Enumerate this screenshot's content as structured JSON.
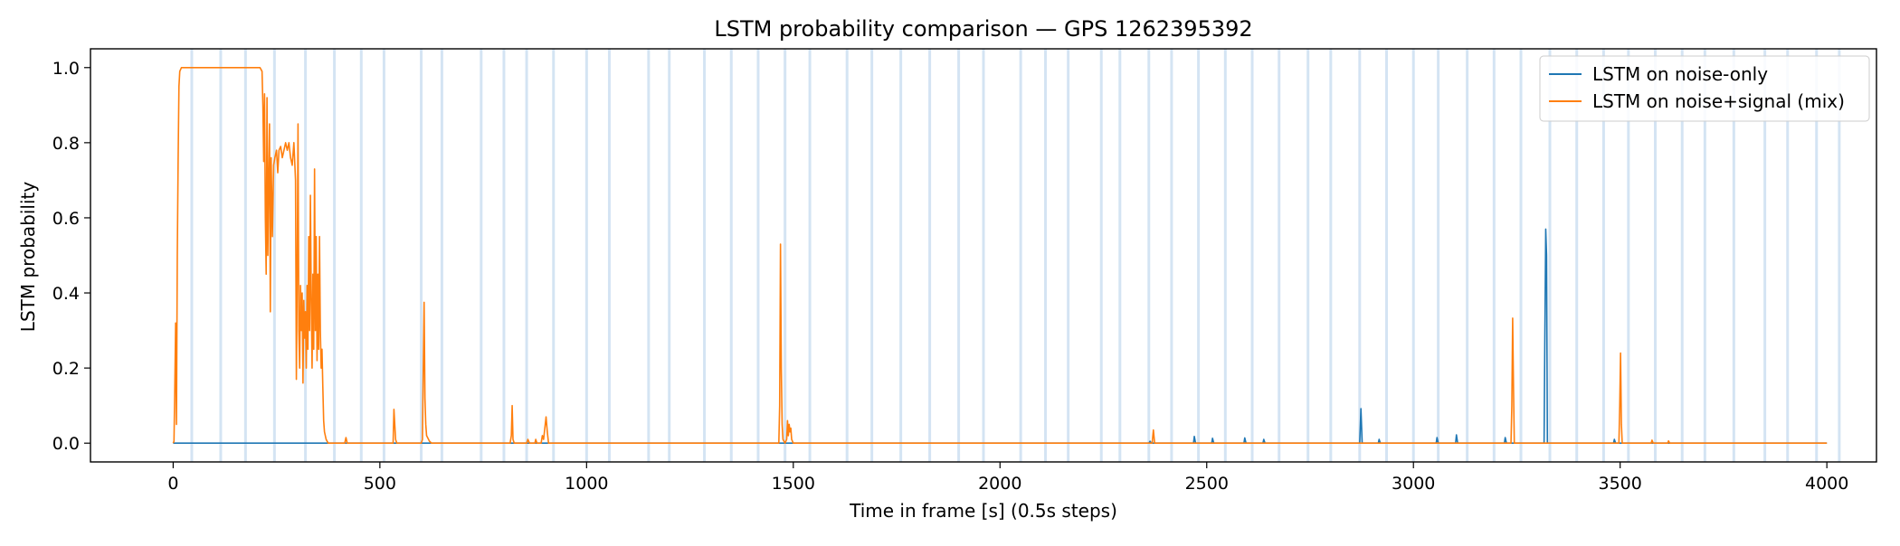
{
  "chart_data": {
    "type": "line",
    "title": "LSTM probability comparison — GPS 1262395392",
    "xlabel": "Time in frame [s] (0.5s steps)",
    "ylabel": "LSTM probability",
    "xlim": [
      -200,
      4120
    ],
    "ylim": [
      -0.05,
      1.05
    ],
    "xticks": [
      0,
      500,
      1000,
      1500,
      2000,
      2500,
      3000,
      3500,
      4000
    ],
    "yticks": [
      0.0,
      0.2,
      0.4,
      0.6,
      0.8,
      1.0
    ],
    "xtick_labels": [
      "0",
      "500",
      "1000",
      "1500",
      "2000",
      "2500",
      "3000",
      "3500",
      "4000"
    ],
    "ytick_labels": [
      "0.0",
      "0.2",
      "0.4",
      "0.6",
      "0.8",
      "1.0"
    ],
    "grid": false,
    "legend_position": "top-right",
    "background_bands": {
      "color": "#c6dbef",
      "x": [
        45,
        115,
        175,
        245,
        320,
        390,
        455,
        510,
        600,
        650,
        745,
        800,
        855,
        920,
        1000,
        1055,
        1150,
        1200,
        1285,
        1350,
        1415,
        1480,
        1540,
        1630,
        1690,
        1760,
        1830,
        1900,
        1960,
        2050,
        2110,
        2165,
        2245,
        2290,
        2360,
        2415,
        2480,
        2545,
        2610,
        2675,
        2745,
        2800,
        2870,
        2935,
        3000,
        3060,
        3130,
        3195,
        3260,
        3330,
        3395,
        3460,
        3520,
        3585,
        3650,
        3705,
        3775,
        3850,
        3905,
        3975,
        4030
      ]
    },
    "series": [
      {
        "name": "LSTM on noise-only",
        "color": "#1f77b4",
        "points": [
          [
            0,
            0
          ],
          [
            2360,
            0
          ],
          [
            2363,
            0.005
          ],
          [
            2366,
            0
          ],
          [
            2468,
            0
          ],
          [
            2470,
            0.018
          ],
          [
            2473,
            0
          ],
          [
            2512,
            0
          ],
          [
            2514,
            0.013
          ],
          [
            2517,
            0
          ],
          [
            2590,
            0
          ],
          [
            2592,
            0.014
          ],
          [
            2595,
            0
          ],
          [
            2636,
            0
          ],
          [
            2638,
            0.01
          ],
          [
            2641,
            0
          ],
          [
            2870,
            0
          ],
          [
            2873,
            0.092
          ],
          [
            2876,
            0
          ],
          [
            2915,
            0
          ],
          [
            2917,
            0.01
          ],
          [
            2920,
            0
          ],
          [
            3055,
            0
          ],
          [
            3057,
            0.015
          ],
          [
            3060,
            0
          ],
          [
            3102,
            0
          ],
          [
            3104,
            0.022
          ],
          [
            3107,
            0
          ],
          [
            3220,
            0
          ],
          [
            3222,
            0.015
          ],
          [
            3225,
            0
          ],
          [
            3316,
            0
          ],
          [
            3318,
            0.3
          ],
          [
            3320,
            0.57
          ],
          [
            3322,
            0.5
          ],
          [
            3324,
            0
          ],
          [
            3484,
            0
          ],
          [
            3486,
            0.01
          ],
          [
            3489,
            0
          ],
          [
            4000,
            0
          ]
        ]
      },
      {
        "name": "LSTM on noise+signal (mix)",
        "color": "#ff7f0e",
        "points": [
          [
            0,
            0
          ],
          [
            2,
            0.005
          ],
          [
            4,
            0.15
          ],
          [
            6,
            0.32
          ],
          [
            8,
            0.05
          ],
          [
            10,
            0.5
          ],
          [
            12,
            0.75
          ],
          [
            14,
            0.95
          ],
          [
            16,
            0.99
          ],
          [
            20,
            1.0
          ],
          [
            210,
            1.0
          ],
          [
            215,
            0.99
          ],
          [
            217,
            0.9
          ],
          [
            219,
            0.75
          ],
          [
            221,
            0.93
          ],
          [
            223,
            0.6
          ],
          [
            225,
            0.45
          ],
          [
            227,
            0.92
          ],
          [
            229,
            0.5
          ],
          [
            231,
            0.7
          ],
          [
            233,
            0.85
          ],
          [
            235,
            0.35
          ],
          [
            237,
            0.76
          ],
          [
            240,
            0.55
          ],
          [
            243,
            0.74
          ],
          [
            246,
            0.76
          ],
          [
            250,
            0.78
          ],
          [
            253,
            0.72
          ],
          [
            256,
            0.78
          ],
          [
            260,
            0.79
          ],
          [
            264,
            0.76
          ],
          [
            268,
            0.78
          ],
          [
            272,
            0.8
          ],
          [
            276,
            0.78
          ],
          [
            280,
            0.8
          ],
          [
            284,
            0.76
          ],
          [
            288,
            0.74
          ],
          [
            292,
            0.8
          ],
          [
            296,
            0.7
          ],
          [
            298,
            0.17
          ],
          [
            300,
            0.45
          ],
          [
            302,
            0.85
          ],
          [
            304,
            0.3
          ],
          [
            306,
            0.2
          ],
          [
            308,
            0.42
          ],
          [
            310,
            0.3
          ],
          [
            312,
            0.4
          ],
          [
            314,
            0.16
          ],
          [
            316,
            0.38
          ],
          [
            318,
            0.28
          ],
          [
            320,
            0.35
          ],
          [
            322,
            0.2
          ],
          [
            324,
            0.42
          ],
          [
            326,
            0.25
          ],
          [
            328,
            0.55
          ],
          [
            330,
            0.3
          ],
          [
            332,
            0.66
          ],
          [
            334,
            0.38
          ],
          [
            336,
            0.2
          ],
          [
            338,
            0.45
          ],
          [
            340,
            0.25
          ],
          [
            342,
            0.73
          ],
          [
            344,
            0.3
          ],
          [
            346,
            0.55
          ],
          [
            348,
            0.22
          ],
          [
            350,
            0.45
          ],
          [
            352,
            0.25
          ],
          [
            354,
            0.55
          ],
          [
            356,
            0.3
          ],
          [
            358,
            0.2
          ],
          [
            360,
            0.25
          ],
          [
            362,
            0.15
          ],
          [
            364,
            0.06
          ],
          [
            366,
            0.03
          ],
          [
            370,
            0.01
          ],
          [
            375,
            0
          ],
          [
            415,
            0
          ],
          [
            418,
            0.015
          ],
          [
            421,
            0
          ],
          [
            532,
            0
          ],
          [
            534,
            0.09
          ],
          [
            536,
            0.05
          ],
          [
            538,
            0.01
          ],
          [
            541,
            0
          ],
          [
            600,
            0
          ],
          [
            603,
            0.01
          ],
          [
            605,
            0.2
          ],
          [
            607,
            0.375
          ],
          [
            609,
            0.12
          ],
          [
            611,
            0.05
          ],
          [
            613,
            0.02
          ],
          [
            620,
            0.005
          ],
          [
            625,
            0
          ],
          [
            815,
            0
          ],
          [
            818,
            0.02
          ],
          [
            820,
            0.1
          ],
          [
            822,
            0.01
          ],
          [
            825,
            0
          ],
          [
            855,
            0
          ],
          [
            858,
            0.01
          ],
          [
            862,
            0
          ],
          [
            875,
            0
          ],
          [
            877,
            0.01
          ],
          [
            880,
            0
          ],
          [
            890,
            0
          ],
          [
            893,
            0.02
          ],
          [
            896,
            0.01
          ],
          [
            899,
            0.04
          ],
          [
            902,
            0.07
          ],
          [
            905,
            0.03
          ],
          [
            908,
            0
          ],
          [
            1465,
            0
          ],
          [
            1467,
            0.1
          ],
          [
            1469,
            0.53
          ],
          [
            1471,
            0.2
          ],
          [
            1473,
            0.05
          ],
          [
            1475,
            0.01
          ],
          [
            1480,
            0
          ],
          [
            1484,
            0.01
          ],
          [
            1486,
            0.06
          ],
          [
            1488,
            0.02
          ],
          [
            1490,
            0.05
          ],
          [
            1492,
            0.03
          ],
          [
            1494,
            0.04
          ],
          [
            1496,
            0.01
          ],
          [
            1500,
            0
          ],
          [
            2368,
            0
          ],
          [
            2371,
            0.035
          ],
          [
            2374,
            0
          ],
          [
            3236,
            0
          ],
          [
            3238,
            0.1
          ],
          [
            3240,
            0.333
          ],
          [
            3242,
            0.15
          ],
          [
            3244,
            0
          ],
          [
            3497,
            0
          ],
          [
            3499,
            0.1
          ],
          [
            3501,
            0.24
          ],
          [
            3503,
            0.05
          ],
          [
            3505,
            0
          ],
          [
            3575,
            0
          ],
          [
            3577,
            0.008
          ],
          [
            3580,
            0
          ],
          [
            3615,
            0
          ],
          [
            3617,
            0.006
          ],
          [
            3620,
            0
          ],
          [
            4000,
            0
          ]
        ]
      }
    ]
  }
}
